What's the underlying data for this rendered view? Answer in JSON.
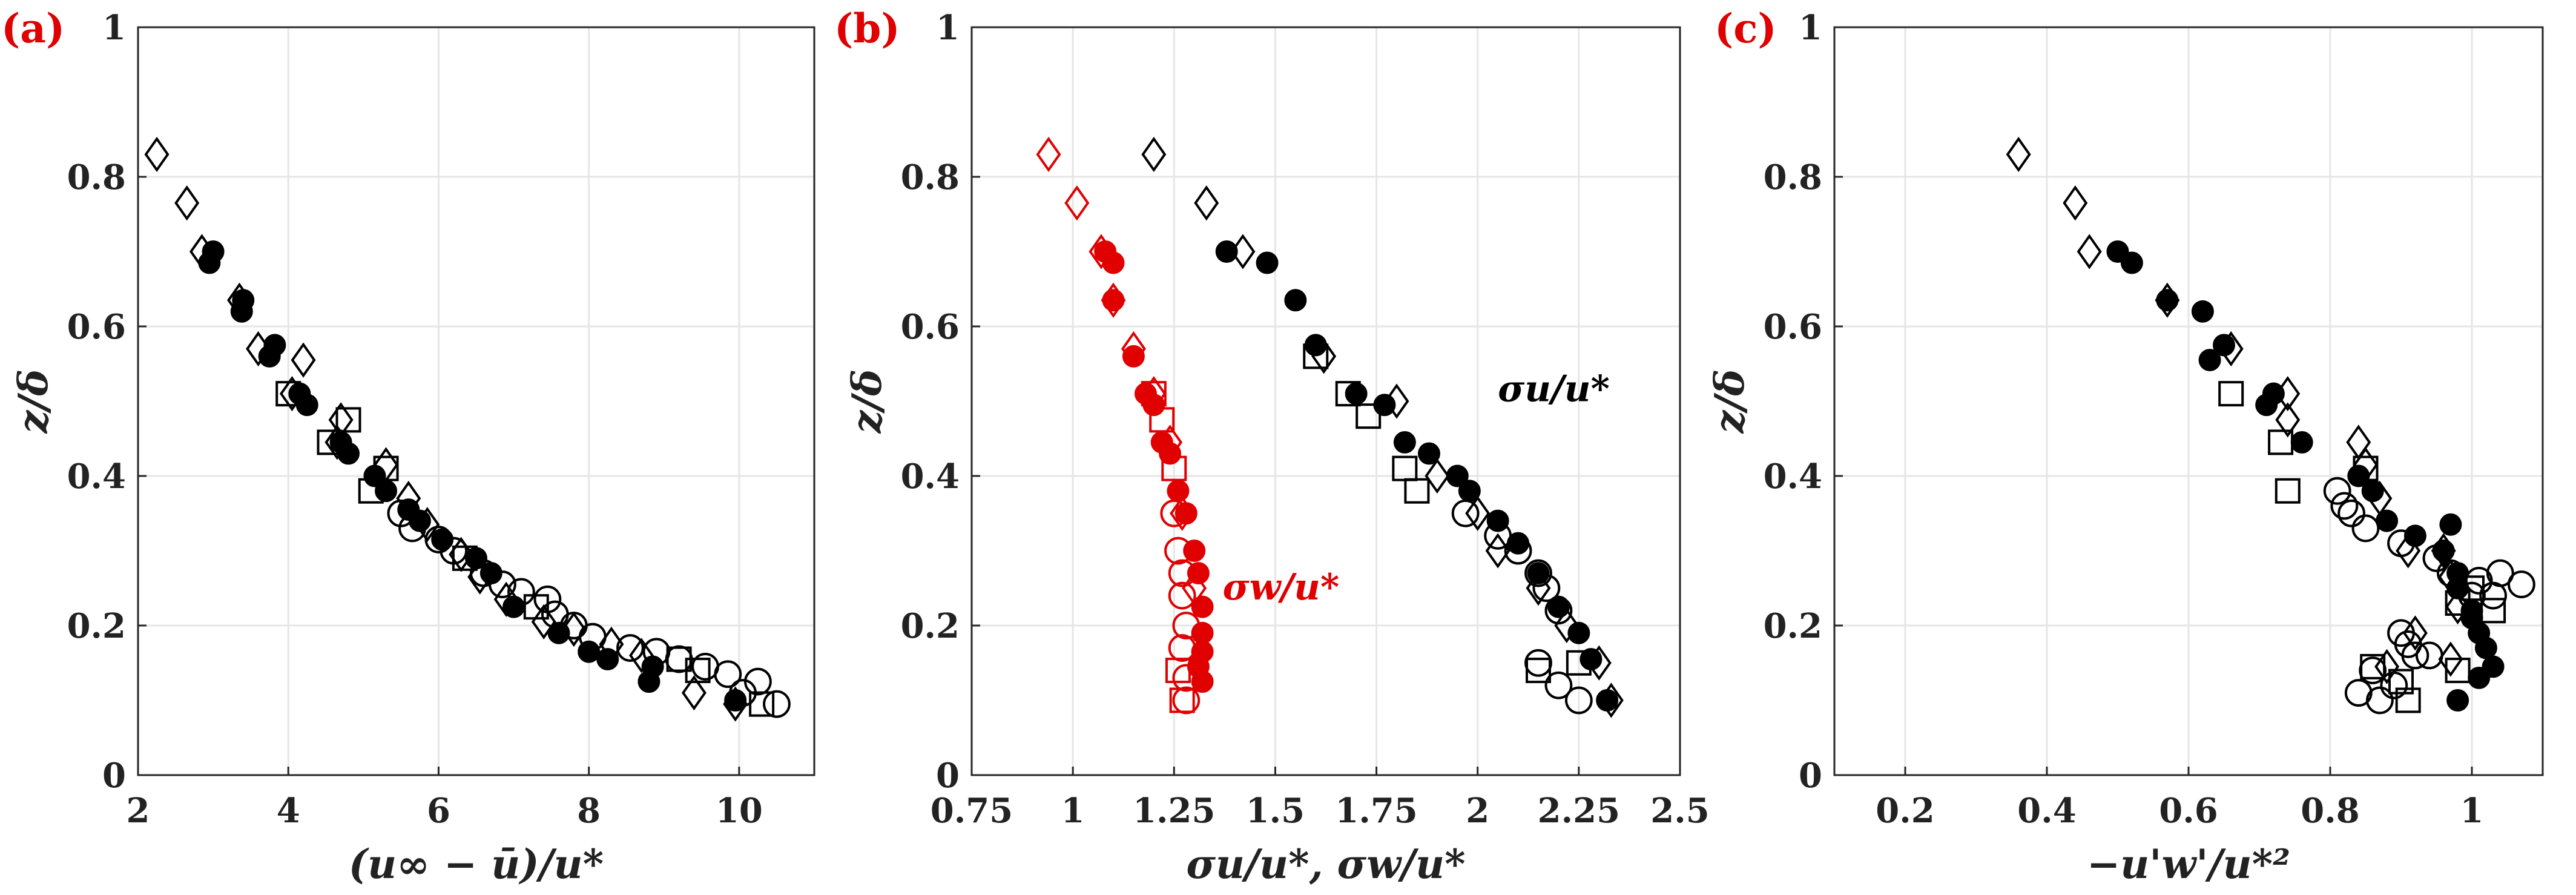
{
  "chart_data": [
    {
      "type": "scatter",
      "panel_label": "(a)",
      "xlabel": "(u∞ − ū)/u*",
      "ylabel": "z/δ",
      "xlim": [
        2,
        11
      ],
      "ylim": [
        0,
        1
      ],
      "xticks": [
        "2",
        "4",
        "6",
        "8",
        "10"
      ],
      "xtick_values": [
        2,
        4,
        6,
        8,
        10
      ],
      "yticks": [
        "0",
        "0.2",
        "0.4",
        "0.6",
        "0.8",
        "1"
      ],
      "ytick_values": [
        0,
        0.2,
        0.4,
        0.6,
        0.8,
        1
      ],
      "grid": true,
      "series": [
        {
          "name": "diamond",
          "marker": "diamond",
          "color": "#000000",
          "x": [
            2.25,
            2.65,
            2.85,
            3.35,
            3.6,
            4.05,
            4.2,
            4.7,
            4.65,
            5.3,
            5.6,
            5.85,
            6.3,
            6.55,
            6.9,
            7.4,
            7.8,
            8.3,
            8.7,
            9.4,
            9.95
          ],
          "y": [
            0.83,
            0.765,
            0.7,
            0.635,
            0.57,
            0.51,
            0.555,
            0.475,
            0.445,
            0.415,
            0.37,
            0.335,
            0.295,
            0.265,
            0.235,
            0.205,
            0.195,
            0.175,
            0.16,
            0.11,
            0.095
          ]
        },
        {
          "name": "filled circle",
          "marker": "filled-circle",
          "color": "#000000",
          "x": [
            2.95,
            3.0,
            3.4,
            3.38,
            3.75,
            3.82,
            4.15,
            4.25,
            4.7,
            4.8,
            5.15,
            5.3,
            5.6,
            5.75,
            6.05,
            6.5,
            6.7,
            7.0,
            7.6,
            8.0,
            8.25,
            8.85,
            8.8,
            9.95
          ],
          "y": [
            0.685,
            0.7,
            0.635,
            0.62,
            0.56,
            0.575,
            0.51,
            0.495,
            0.445,
            0.43,
            0.4,
            0.38,
            0.355,
            0.34,
            0.315,
            0.29,
            0.27,
            0.225,
            0.19,
            0.165,
            0.155,
            0.145,
            0.125,
            0.1
          ]
        },
        {
          "name": "open circle",
          "marker": "open-circle",
          "color": "#000000",
          "x": [
            5.5,
            5.65,
            6.0,
            6.2,
            6.6,
            6.85,
            7.1,
            7.45,
            7.55,
            7.8,
            8.05,
            8.55,
            8.9,
            9.2,
            9.55,
            9.85,
            10.05,
            10.25,
            10.5
          ],
          "y": [
            0.35,
            0.33,
            0.315,
            0.3,
            0.27,
            0.255,
            0.245,
            0.235,
            0.215,
            0.2,
            0.185,
            0.17,
            0.165,
            0.155,
            0.145,
            0.135,
            0.11,
            0.125,
            0.095
          ]
        },
        {
          "name": "square",
          "marker": "square",
          "color": "#000000",
          "x": [
            4.0,
            4.55,
            4.8,
            5.3,
            5.1,
            6.35,
            7.3,
            9.2,
            9.45,
            10.3
          ],
          "y": [
            0.51,
            0.445,
            0.475,
            0.41,
            0.38,
            0.29,
            0.225,
            0.155,
            0.14,
            0.095
          ]
        }
      ]
    },
    {
      "type": "scatter",
      "panel_label": "(b)",
      "xlabel": "σu/u*, σw/u*",
      "ylabel": "z/δ",
      "xlim": [
        0.75,
        2.5
      ],
      "ylim": [
        0,
        1
      ],
      "xticks": [
        "0.75",
        "1",
        "1.25",
        "1.5",
        "1.75",
        "2",
        "2.25",
        "2.5"
      ],
      "xtick_values": [
        0.75,
        1,
        1.25,
        1.5,
        1.75,
        2,
        2.25,
        2.5
      ],
      "yticks": [
        "0",
        "0.2",
        "0.4",
        "0.6",
        "0.8",
        "1"
      ],
      "ytick_values": [
        0,
        0.2,
        0.4,
        0.6,
        0.8,
        1
      ],
      "grid": true,
      "annotations": [
        {
          "text": "σu/u*",
          "x": 2.05,
          "y": 0.5,
          "color": "#000000"
        },
        {
          "text": "σw/u*",
          "x": 1.37,
          "y": 0.235,
          "color": "#e00000"
        }
      ],
      "series": [
        {
          "name": "σu/u* diamond",
          "marker": "diamond",
          "color": "#000000",
          "x": [
            1.2,
            1.33,
            1.42,
            1.62,
            1.8,
            1.9,
            2.0,
            2.05,
            2.15,
            2.22,
            2.3,
            2.33
          ],
          "y": [
            0.83,
            0.765,
            0.7,
            0.56,
            0.5,
            0.4,
            0.35,
            0.3,
            0.25,
            0.2,
            0.15,
            0.1
          ]
        },
        {
          "name": "σu/u* filled circle",
          "marker": "filled-circle",
          "color": "#000000",
          "x": [
            1.38,
            1.48,
            1.55,
            1.6,
            1.7,
            1.77,
            1.82,
            1.88,
            1.95,
            1.98,
            2.05,
            2.1,
            2.15,
            2.2,
            2.25,
            2.28,
            2.32
          ],
          "y": [
            0.7,
            0.685,
            0.635,
            0.575,
            0.51,
            0.495,
            0.445,
            0.43,
            0.4,
            0.38,
            0.34,
            0.31,
            0.27,
            0.225,
            0.19,
            0.155,
            0.1
          ]
        },
        {
          "name": "σu/u* open circle",
          "marker": "open-circle",
          "color": "#000000",
          "x": [
            1.97,
            2.05,
            2.1,
            2.15,
            2.17,
            2.2,
            2.15,
            2.2,
            2.25
          ],
          "y": [
            0.35,
            0.32,
            0.3,
            0.27,
            0.25,
            0.22,
            0.15,
            0.12,
            0.1
          ]
        },
        {
          "name": "σu/u* square",
          "marker": "square",
          "color": "#000000",
          "x": [
            1.6,
            1.68,
            1.73,
            1.82,
            1.85,
            2.15,
            2.25
          ],
          "y": [
            0.56,
            0.51,
            0.48,
            0.41,
            0.38,
            0.14,
            0.15
          ]
        },
        {
          "name": "σw/u* diamond",
          "marker": "diamond",
          "color": "#e00000",
          "x": [
            0.94,
            1.01,
            1.07,
            1.1,
            1.15,
            1.2,
            1.24,
            1.27,
            1.3
          ],
          "y": [
            0.83,
            0.765,
            0.7,
            0.635,
            0.57,
            0.51,
            0.445,
            0.35,
            0.25
          ]
        },
        {
          "name": "σw/u* filled circle",
          "marker": "filled-circle",
          "color": "#e00000",
          "x": [
            1.08,
            1.1,
            1.1,
            1.15,
            1.18,
            1.2,
            1.22,
            1.24,
            1.26,
            1.28,
            1.3,
            1.31,
            1.32,
            1.32,
            1.32,
            1.31,
            1.32
          ],
          "y": [
            0.7,
            0.685,
            0.635,
            0.56,
            0.51,
            0.495,
            0.445,
            0.43,
            0.38,
            0.35,
            0.3,
            0.27,
            0.225,
            0.19,
            0.165,
            0.145,
            0.125
          ]
        },
        {
          "name": "σw/u* open circle",
          "marker": "open-circle",
          "color": "#e00000",
          "x": [
            1.25,
            1.26,
            1.27,
            1.27,
            1.28,
            1.27,
            1.28,
            1.28
          ],
          "y": [
            0.35,
            0.3,
            0.27,
            0.24,
            0.2,
            0.17,
            0.13,
            0.1
          ]
        },
        {
          "name": "σw/u* square",
          "marker": "square",
          "color": "#e00000",
          "x": [
            1.2,
            1.22,
            1.25,
            1.26,
            1.27
          ],
          "y": [
            0.51,
            0.475,
            0.41,
            0.14,
            0.1
          ]
        }
      ]
    },
    {
      "type": "scatter",
      "panel_label": "(c)",
      "xlabel": "−u'w'/u*²",
      "ylabel": "z/δ",
      "xlim": [
        0.1,
        1.1
      ],
      "ylim": [
        0,
        1
      ],
      "xticks": [
        "0.2",
        "0.4",
        "0.6",
        "0.8",
        "1"
      ],
      "xtick_values": [
        0.2,
        0.4,
        0.6,
        0.8,
        1
      ],
      "yticks": [
        "0",
        "0.2",
        "0.4",
        "0.6",
        "0.8",
        "1"
      ],
      "ytick_values": [
        0,
        0.2,
        0.4,
        0.6,
        0.8,
        1
      ],
      "grid": true,
      "series": [
        {
          "name": "diamond",
          "marker": "diamond",
          "color": "#000000",
          "x": [
            0.36,
            0.44,
            0.46,
            0.57,
            0.66,
            0.74,
            0.74,
            0.84,
            0.85,
            0.87,
            0.91,
            0.96,
            0.97,
            0.98,
            0.88,
            0.92,
            0.97
          ],
          "y": [
            0.83,
            0.765,
            0.7,
            0.635,
            0.57,
            0.51,
            0.475,
            0.445,
            0.415,
            0.37,
            0.3,
            0.3,
            0.265,
            0.225,
            0.145,
            0.19,
            0.155
          ]
        },
        {
          "name": "filled circle",
          "marker": "filled-circle",
          "color": "#000000",
          "x": [
            0.5,
            0.52,
            0.57,
            0.62,
            0.63,
            0.65,
            0.71,
            0.72,
            0.76,
            0.84,
            0.86,
            0.88,
            0.92,
            0.96,
            0.97,
            0.98,
            0.98,
            1.0,
            1.0,
            1.01,
            1.02,
            1.01,
            1.03,
            0.98
          ],
          "y": [
            0.7,
            0.685,
            0.635,
            0.62,
            0.555,
            0.575,
            0.495,
            0.51,
            0.445,
            0.4,
            0.38,
            0.34,
            0.32,
            0.3,
            0.335,
            0.27,
            0.25,
            0.22,
            0.21,
            0.19,
            0.17,
            0.13,
            0.145,
            0.1
          ]
        },
        {
          "name": "open circle",
          "marker": "open-circle",
          "color": "#000000",
          "x": [
            0.81,
            0.82,
            0.83,
            0.85,
            0.9,
            0.95,
            0.97,
            1.01,
            1.03,
            1.04,
            1.07,
            1.0,
            0.9,
            0.91,
            0.92,
            0.94,
            0.86,
            0.89,
            0.84,
            0.87
          ],
          "y": [
            0.38,
            0.36,
            0.35,
            0.33,
            0.31,
            0.29,
            0.27,
            0.26,
            0.24,
            0.27,
            0.255,
            0.24,
            0.19,
            0.175,
            0.16,
            0.16,
            0.14,
            0.12,
            0.11,
            0.1
          ]
        },
        {
          "name": "square",
          "marker": "square",
          "color": "#000000",
          "x": [
            0.66,
            0.73,
            0.74,
            0.85,
            1.0,
            0.98,
            1.03,
            0.86,
            0.9,
            0.91,
            0.98
          ],
          "y": [
            0.51,
            0.445,
            0.38,
            0.41,
            0.25,
            0.23,
            0.22,
            0.145,
            0.125,
            0.1,
            0.14
          ]
        }
      ]
    }
  ]
}
